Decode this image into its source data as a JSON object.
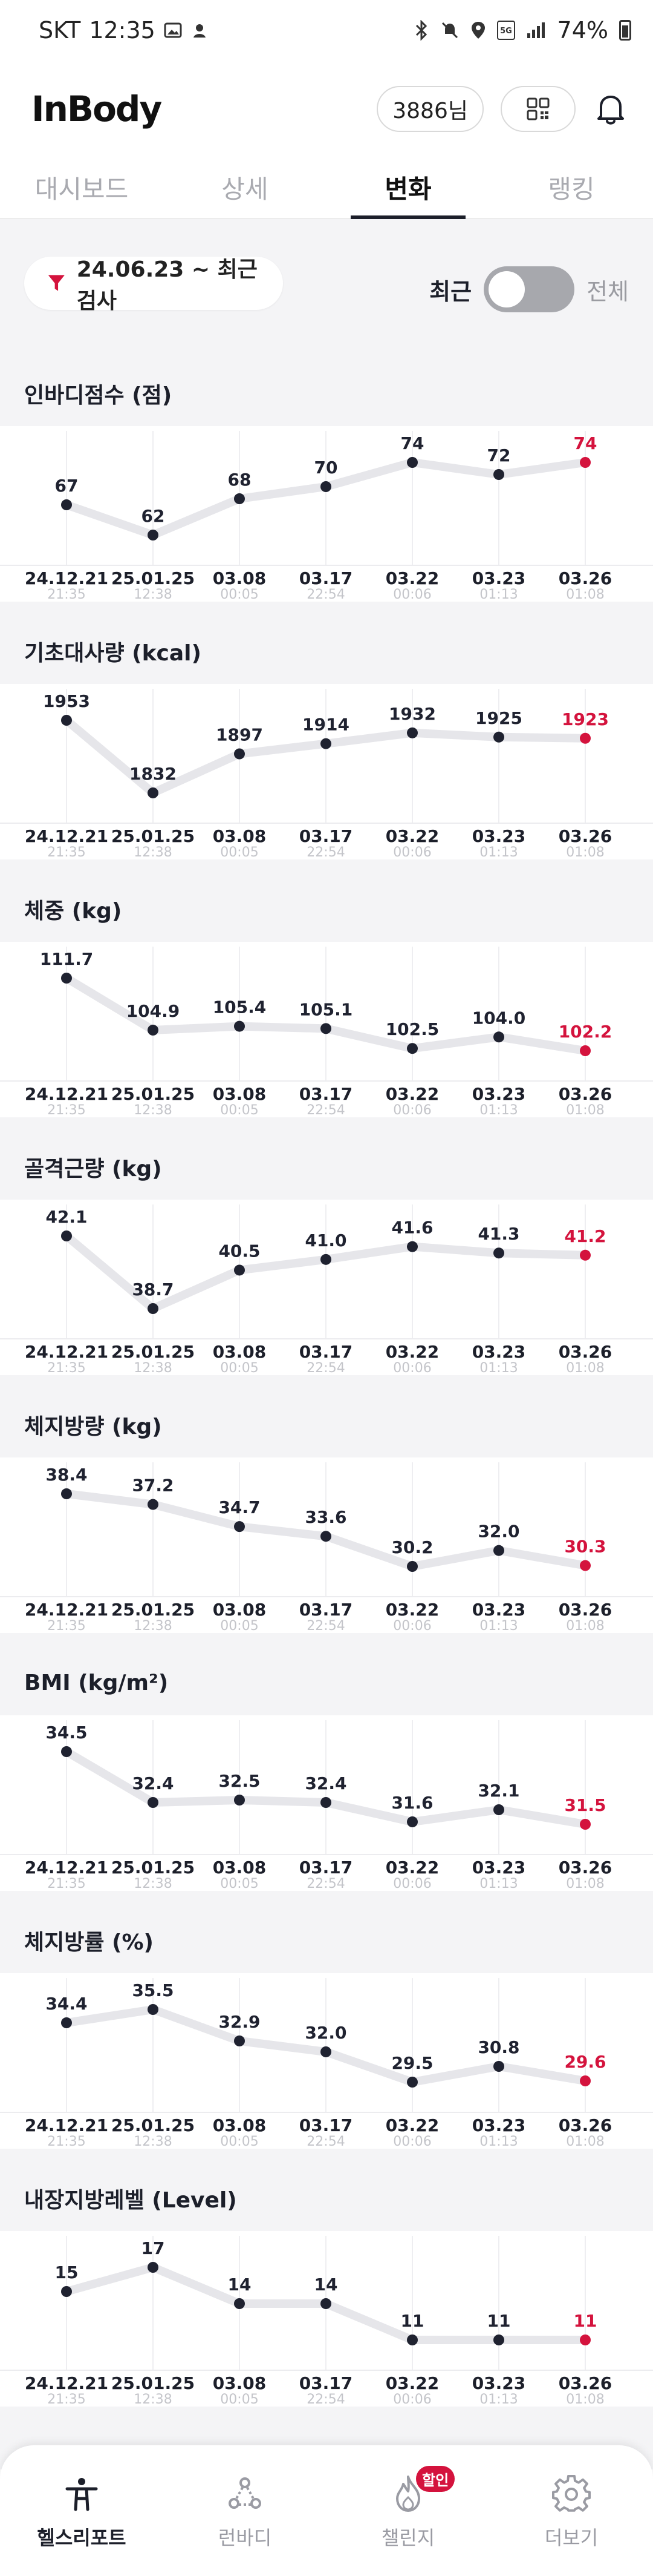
{
  "status_bar": {
    "carrier": "SKT",
    "time": "12:35",
    "battery": "74%"
  },
  "header": {
    "logo": "InBody",
    "points": "3886님"
  },
  "tabs": [
    {
      "label": "대시보드",
      "active": false
    },
    {
      "label": "상세",
      "active": false
    },
    {
      "label": "변화",
      "active": true
    },
    {
      "label": "랭킹",
      "active": false
    }
  ],
  "filter": {
    "label": "24.06.23 ~ 최근 검사"
  },
  "toggle": {
    "left_label": "최근",
    "right_label": "전체",
    "state": "최근"
  },
  "colors": {
    "accent_red": "#d4133d",
    "line": "#e6e6ea",
    "point": "#1f2230",
    "text_gray": "#9a9ba1"
  },
  "dates": [
    {
      "date": "24.12.21",
      "time": "21:35"
    },
    {
      "date": "25.01.25",
      "time": "12:38"
    },
    {
      "date": "03.08",
      "time": "00:05"
    },
    {
      "date": "03.17",
      "time": "22:54"
    },
    {
      "date": "03.22",
      "time": "00:06"
    },
    {
      "date": "03.23",
      "time": "01:13"
    },
    {
      "date": "03.26",
      "time": "01:08"
    }
  ],
  "chart_data": [
    {
      "type": "line",
      "title": "인바디점수 (점)",
      "x": [
        "24.12.21",
        "25.01.25",
        "03.08",
        "03.17",
        "03.22",
        "03.23",
        "03.26"
      ],
      "values": [
        "67",
        "62",
        "68",
        "70",
        "74",
        "72",
        "74"
      ]
    },
    {
      "type": "line",
      "title": "기초대사량 (kcal)",
      "x": [
        "24.12.21",
        "25.01.25",
        "03.08",
        "03.17",
        "03.22",
        "03.23",
        "03.26"
      ],
      "values": [
        "1953",
        "1832",
        "1897",
        "1914",
        "1932",
        "1925",
        "1923"
      ]
    },
    {
      "type": "line",
      "title": "체중 (kg)",
      "x": [
        "24.12.21",
        "25.01.25",
        "03.08",
        "03.17",
        "03.22",
        "03.23",
        "03.26"
      ],
      "values": [
        "111.7",
        "104.9",
        "105.4",
        "105.1",
        "102.5",
        "104.0",
        "102.2"
      ]
    },
    {
      "type": "line",
      "title": "골격근량 (kg)",
      "x": [
        "24.12.21",
        "25.01.25",
        "03.08",
        "03.17",
        "03.22",
        "03.23",
        "03.26"
      ],
      "values": [
        "42.1",
        "38.7",
        "40.5",
        "41.0",
        "41.6",
        "41.3",
        "41.2"
      ]
    },
    {
      "type": "line",
      "title": "체지방량 (kg)",
      "x": [
        "24.12.21",
        "25.01.25",
        "03.08",
        "03.17",
        "03.22",
        "03.23",
        "03.26"
      ],
      "values": [
        "38.4",
        "37.2",
        "34.7",
        "33.6",
        "30.2",
        "32.0",
        "30.3"
      ]
    },
    {
      "type": "line",
      "title": "BMI (kg/m²)",
      "x": [
        "24.12.21",
        "25.01.25",
        "03.08",
        "03.17",
        "03.22",
        "03.23",
        "03.26"
      ],
      "values": [
        "34.5",
        "32.4",
        "32.5",
        "32.4",
        "31.6",
        "32.1",
        "31.5"
      ]
    },
    {
      "type": "line",
      "title": "체지방률 (%)",
      "x": [
        "24.12.21",
        "25.01.25",
        "03.08",
        "03.17",
        "03.22",
        "03.23",
        "03.26"
      ],
      "values": [
        "34.4",
        "35.5",
        "32.9",
        "32.0",
        "29.5",
        "30.8",
        "29.6"
      ]
    },
    {
      "type": "line",
      "title": "내장지방레벨 (Level)",
      "x": [
        "24.12.21",
        "25.01.25",
        "03.08",
        "03.17",
        "03.22",
        "03.23",
        "03.26"
      ],
      "values": [
        "15",
        "17",
        "14",
        "14",
        "11",
        "11",
        "11"
      ]
    }
  ],
  "bottom_nav": [
    {
      "label": "헬스리포트",
      "icon": "person-health-icon",
      "active": true
    },
    {
      "label": "런바디",
      "icon": "runbody-icon",
      "active": false
    },
    {
      "label": "챌린지",
      "icon": "flame-icon",
      "active": false,
      "badge": "할인"
    },
    {
      "label": "더보기",
      "icon": "gear-icon",
      "active": false
    }
  ]
}
